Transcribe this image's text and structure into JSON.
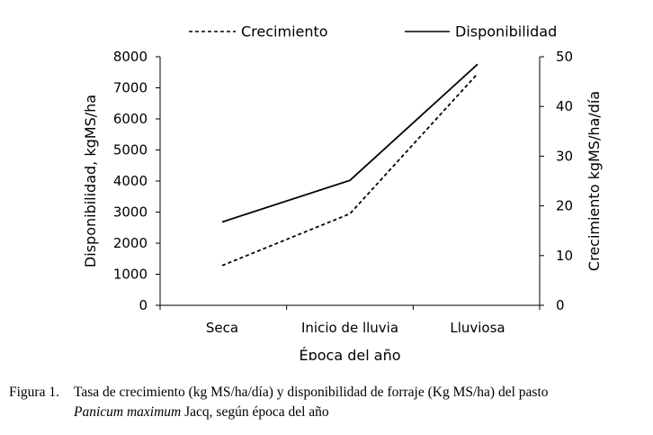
{
  "chart_data": {
    "type": "line",
    "categories": [
      "Seca",
      "Inicio de lluvia",
      "Lluviosa"
    ],
    "xlabel": "Época del año",
    "ylabel_left": "Disponibilidad, kgMS/ha",
    "ylabel_right": "Crecimiento kgMS/ha/día",
    "ylim_left": [
      0,
      8000
    ],
    "yticks_left": [
      "0",
      "1000",
      "2000",
      "3000",
      "4000",
      "5000",
      "6000",
      "7000",
      "8000"
    ],
    "ylim_right": [
      0,
      50
    ],
    "yticks_right": [
      "0",
      "10",
      "20",
      "30",
      "40",
      "50"
    ],
    "grid": false,
    "legend_position": "top",
    "series": [
      {
        "name": "Crecimiento",
        "axis": "right",
        "style": "dashed",
        "color": "#000000",
        "values": [
          8,
          18.4,
          46.6
        ]
      },
      {
        "name": "Disponibilidad",
        "axis": "left",
        "style": "solid",
        "color": "#000000",
        "values": [
          2680,
          4020,
          7760
        ]
      }
    ]
  },
  "caption": {
    "label": "Figura 1.",
    "line1": "Tasa de crecimiento (kg MS/ha/día) y disponibilidad de forraje (Kg MS/ha) del pasto",
    "species": "Panicum maximum",
    "line2_rest": " Jacq, según época del año"
  }
}
